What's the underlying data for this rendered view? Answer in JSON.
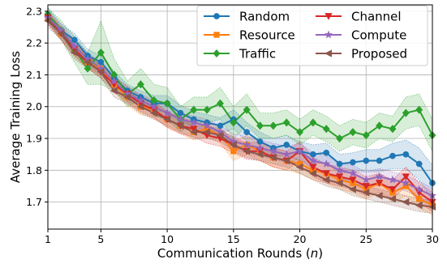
{
  "chart_data": {
    "type": "line",
    "xlabel_main": "Communication Rounds (",
    "xlabel_var": "n",
    "xlabel_end": ")",
    "ylabel": "Average Training Loss",
    "xlim": [
      1,
      30
    ],
    "ylim": [
      1.615,
      2.32
    ],
    "x_ticks": [
      1,
      5,
      10,
      15,
      20,
      25,
      30
    ],
    "y_ticks": [
      1.7,
      1.8,
      1.9,
      2.0,
      2.1,
      2.2,
      2.3
    ],
    "y_tick_labels": [
      "1.7",
      "1.8",
      "1.9",
      "2.0",
      "2.1",
      "2.2",
      "2.3"
    ],
    "grid": true,
    "legend_position": "top-right",
    "legend_columns": 2,
    "x": [
      1,
      2,
      3,
      4,
      5,
      6,
      7,
      8,
      9,
      10,
      11,
      12,
      13,
      14,
      15,
      16,
      17,
      18,
      19,
      20,
      21,
      22,
      23,
      24,
      25,
      26,
      27,
      28,
      29,
      30
    ],
    "series": [
      {
        "name": "Random",
        "color": "#1f77b4",
        "marker": "circle",
        "values": [
          2.29,
          2.24,
          2.21,
          2.16,
          2.14,
          2.09,
          2.05,
          2.03,
          2.01,
          2.01,
          1.98,
          1.96,
          1.95,
          1.94,
          1.96,
          1.92,
          1.89,
          1.87,
          1.88,
          1.86,
          1.85,
          1.855,
          1.82,
          1.825,
          1.83,
          1.83,
          1.845,
          1.85,
          1.82,
          1.76
        ],
        "band": [
          0.02,
          0.02,
          0.02,
          0.02,
          0.02,
          0.02,
          0.02,
          0.02,
          0.025,
          0.025,
          0.025,
          0.025,
          0.025,
          0.025,
          0.03,
          0.03,
          0.03,
          0.03,
          0.03,
          0.03,
          0.03,
          0.03,
          0.03,
          0.03,
          0.035,
          0.035,
          0.04,
          0.045,
          0.05,
          0.055
        ]
      },
      {
        "name": "Resource",
        "color": "#ff7f0e",
        "marker": "square",
        "values": [
          2.28,
          2.23,
          2.18,
          2.14,
          2.12,
          2.07,
          2.03,
          2.0,
          1.99,
          1.96,
          1.94,
          1.92,
          1.93,
          1.91,
          1.86,
          1.88,
          1.86,
          1.84,
          1.83,
          1.82,
          1.8,
          1.79,
          1.77,
          1.76,
          1.74,
          1.76,
          1.73,
          1.75,
          1.71,
          1.69
        ],
        "band": [
          0.02,
          0.02,
          0.02,
          0.02,
          0.02,
          0.02,
          0.025,
          0.025,
          0.025,
          0.025,
          0.025,
          0.025,
          0.025,
          0.025,
          0.03,
          0.03,
          0.03,
          0.03,
          0.03,
          0.03,
          0.03,
          0.03,
          0.03,
          0.03,
          0.03,
          0.03,
          0.03,
          0.03,
          0.03,
          0.03
        ]
      },
      {
        "name": "Traffic",
        "color": "#2ca02c",
        "marker": "diamond",
        "values": [
          2.29,
          2.24,
          2.18,
          2.12,
          2.17,
          2.1,
          2.04,
          2.07,
          2.02,
          2.01,
          1.96,
          1.99,
          1.99,
          2.01,
          1.95,
          1.99,
          1.94,
          1.94,
          1.95,
          1.92,
          1.95,
          1.93,
          1.9,
          1.92,
          1.91,
          1.94,
          1.93,
          1.98,
          1.99,
          1.91
        ],
        "band": [
          0.02,
          0.03,
          0.04,
          0.05,
          0.1,
          0.05,
          0.04,
          0.05,
          0.05,
          0.05,
          0.04,
          0.04,
          0.04,
          0.05,
          0.05,
          0.05,
          0.04,
          0.04,
          0.04,
          0.04,
          0.04,
          0.04,
          0.04,
          0.04,
          0.04,
          0.04,
          0.04,
          0.05,
          0.05,
          0.05
        ]
      },
      {
        "name": "Channel",
        "color": "#d62728",
        "marker": "triangle-down",
        "values": [
          2.28,
          2.23,
          2.18,
          2.14,
          2.11,
          2.07,
          2.04,
          2.01,
          1.99,
          1.96,
          1.94,
          1.93,
          1.91,
          1.9,
          1.88,
          1.86,
          1.86,
          1.84,
          1.83,
          1.86,
          1.81,
          1.79,
          1.78,
          1.77,
          1.75,
          1.76,
          1.74,
          1.78,
          1.73,
          1.7
        ],
        "band": [
          0.02,
          0.02,
          0.02,
          0.02,
          0.02,
          0.02,
          0.025,
          0.025,
          0.025,
          0.025,
          0.025,
          0.025,
          0.025,
          0.025,
          0.025,
          0.025,
          0.03,
          0.03,
          0.03,
          0.03,
          0.03,
          0.03,
          0.03,
          0.03,
          0.03,
          0.03,
          0.03,
          0.03,
          0.03,
          0.03
        ]
      },
      {
        "name": "Compute",
        "color": "#9467bd",
        "marker": "star",
        "values": [
          2.28,
          2.24,
          2.19,
          2.15,
          2.12,
          2.08,
          2.04,
          2.02,
          2.0,
          1.98,
          1.96,
          1.95,
          1.94,
          1.92,
          1.89,
          1.88,
          1.87,
          1.86,
          1.85,
          1.86,
          1.83,
          1.82,
          1.8,
          1.79,
          1.77,
          1.78,
          1.77,
          1.76,
          1.74,
          1.72
        ],
        "band": [
          0.02,
          0.02,
          0.02,
          0.02,
          0.02,
          0.02,
          0.02,
          0.02,
          0.02,
          0.02,
          0.02,
          0.02,
          0.02,
          0.02,
          0.025,
          0.025,
          0.025,
          0.025,
          0.025,
          0.025,
          0.025,
          0.025,
          0.025,
          0.025,
          0.025,
          0.025,
          0.025,
          0.025,
          0.025,
          0.025
        ]
      },
      {
        "name": "Proposed",
        "color": "#8c564b",
        "marker": "triangle-left",
        "values": [
          2.27,
          2.23,
          2.17,
          2.14,
          2.11,
          2.05,
          2.03,
          2.0,
          1.98,
          1.96,
          1.94,
          1.92,
          1.92,
          1.91,
          1.88,
          1.86,
          1.85,
          1.84,
          1.83,
          1.81,
          1.79,
          1.77,
          1.76,
          1.74,
          1.73,
          1.72,
          1.71,
          1.7,
          1.69,
          1.685
        ],
        "band": [
          0.02,
          0.02,
          0.02,
          0.02,
          0.02,
          0.02,
          0.02,
          0.02,
          0.02,
          0.02,
          0.02,
          0.02,
          0.02,
          0.02,
          0.02,
          0.02,
          0.02,
          0.02,
          0.02,
          0.02,
          0.02,
          0.02,
          0.02,
          0.02,
          0.02,
          0.02,
          0.02,
          0.02,
          0.02,
          0.02
        ]
      }
    ]
  }
}
